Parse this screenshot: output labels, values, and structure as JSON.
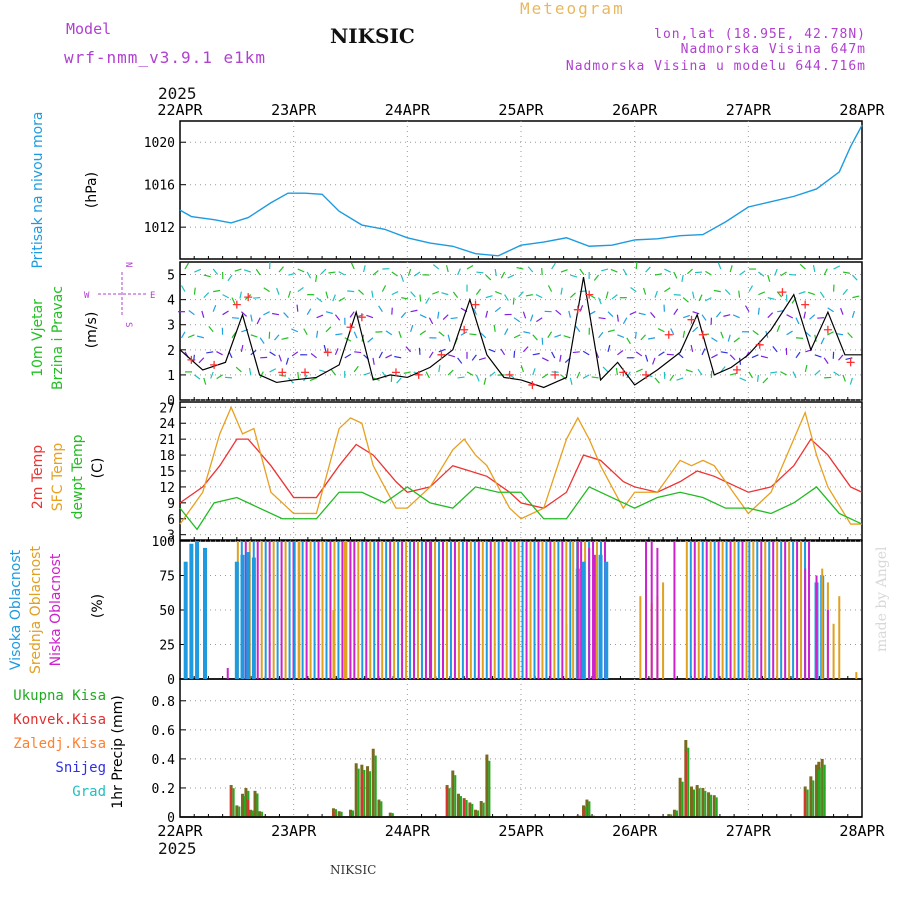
{
  "header": {
    "model_label": "Model",
    "model_name": "wrf-nmm_v3.9.1 e1km",
    "station": "NIKSIC",
    "title": "Meteogram",
    "location": "lon,lat (18.95E, 42.78N)",
    "elevation": "Nadmorska Visina 647m",
    "model_elevation": "Nadmorska Visina u modelu 644.716m",
    "year_top": "2025",
    "year_bottom": "2025",
    "footer_station": "NIKSIC",
    "watermark": "made by Angel"
  },
  "colors": {
    "pressure": "#1e9be0",
    "wind_label": "#22c022",
    "wind_speed": "#000000",
    "gust": "#ff3030",
    "temp2m": "#ee3333",
    "sfc": "#e8a020",
    "dewpt": "#22bb22",
    "cloud_high": "#1e9be0",
    "cloud_mid": "#e0a020",
    "cloud_low": "#cc22cc",
    "precip_total": "#22aa22",
    "precip_conv": "#e03030",
    "precip_frz": "#ff8030",
    "precip_snow": "#3030e0",
    "precip_hail": "#20c0c0",
    "title": "#e8b860",
    "meta": "#b040d0"
  },
  "chart_data": [
    {
      "type": "line",
      "panel": "pressure",
      "ylabel": [
        "Pritisak na nivou mora",
        "(hPa)"
      ],
      "ylim": [
        1009,
        1022
      ],
      "yticks": [
        1012,
        1016,
        1020
      ],
      "x_days": [
        "22APR",
        "23APR",
        "24APR",
        "25APR",
        "26APR",
        "27APR",
        "28APR"
      ],
      "series": [
        {
          "x": [
            0,
            0.1,
            0.3,
            0.45,
            0.6,
            0.8,
            0.95,
            1.1,
            1.25,
            1.4,
            1.6,
            1.8,
            2.0,
            2.2,
            2.4,
            2.6,
            2.8,
            3.0,
            3.2,
            3.4,
            3.6,
            3.8,
            4.0,
            4.2,
            4.4,
            4.6,
            4.8,
            5.0,
            5.2,
            5.4,
            5.6,
            5.8,
            5.9,
            6.0
          ],
          "values": [
            1013.6,
            1013.0,
            1012.7,
            1012.4,
            1012.9,
            1014.3,
            1015.2,
            1015.2,
            1015.1,
            1013.5,
            1012.2,
            1011.8,
            1011.0,
            1010.5,
            1010.2,
            1009.5,
            1009.3,
            1010.3,
            1010.6,
            1011.0,
            1010.2,
            1010.3,
            1010.8,
            1010.9,
            1011.2,
            1011.3,
            1012.5,
            1013.9,
            1014.4,
            1014.9,
            1015.6,
            1017.2,
            1019.6,
            1021.6
          ]
        }
      ]
    },
    {
      "type": "line",
      "panel": "wind",
      "ylabel": [
        "10m Vjetar",
        "Brzina i Pravac",
        "(m/s)"
      ],
      "ylim": [
        0,
        5.5
      ],
      "yticks": [
        0,
        1,
        2,
        3,
        4,
        5
      ],
      "compass": {
        "w": "W",
        "e": "E",
        "n": "N",
        "s": "S"
      },
      "series": [
        {
          "name": "speed",
          "x": [
            0,
            0.2,
            0.4,
            0.55,
            0.7,
            0.85,
            1.0,
            1.2,
            1.4,
            1.55,
            1.7,
            1.85,
            2.0,
            2.2,
            2.4,
            2.55,
            2.7,
            2.85,
            3.0,
            3.2,
            3.4,
            3.55,
            3.7,
            3.85,
            4.0,
            4.2,
            4.4,
            4.55,
            4.7,
            4.85,
            5.0,
            5.2,
            5.4,
            5.55,
            5.7,
            5.85,
            6.0
          ],
          "values": [
            2.0,
            1.2,
            1.5,
            3.4,
            1.0,
            0.7,
            0.8,
            0.9,
            1.4,
            3.5,
            0.8,
            1.0,
            0.9,
            1.3,
            2.0,
            4.0,
            1.8,
            0.9,
            0.8,
            0.5,
            0.9,
            4.9,
            0.8,
            1.5,
            0.6,
            1.2,
            1.9,
            3.4,
            1.0,
            1.3,
            1.8,
            2.8,
            4.2,
            2.0,
            3.5,
            1.8,
            1.8
          ]
        },
        {
          "name": "gust",
          "x": [
            0.1,
            0.3,
            0.5,
            0.6,
            0.9,
            1.1,
            1.3,
            1.5,
            1.6,
            1.9,
            2.1,
            2.3,
            2.5,
            2.6,
            2.9,
            3.1,
            3.3,
            3.5,
            3.6,
            3.9,
            4.1,
            4.3,
            4.5,
            4.6,
            4.9,
            5.1,
            5.3,
            5.5,
            5.7,
            5.9
          ],
          "values": [
            1.6,
            1.4,
            3.8,
            4.1,
            1.1,
            1.1,
            1.9,
            2.9,
            3.3,
            1.1,
            1.0,
            1.8,
            2.8,
            3.8,
            1.0,
            0.6,
            1.0,
            3.6,
            4.2,
            1.1,
            1.0,
            2.6,
            3.2,
            2.6,
            1.2,
            2.2,
            4.3,
            3.8,
            2.8,
            1.5
          ]
        }
      ]
    },
    {
      "type": "line",
      "panel": "temperature",
      "ylabel": [
        "2m Temp",
        "SFC Temp",
        "dewpt Temp",
        "(C)"
      ],
      "ylim": [
        2,
        28
      ],
      "yticks": [
        3,
        6,
        9,
        12,
        15,
        18,
        21,
        24,
        27
      ],
      "series": [
        {
          "name": "2m Temp",
          "x": [
            0,
            0.2,
            0.35,
            0.5,
            0.6,
            0.8,
            1.0,
            1.2,
            1.4,
            1.55,
            1.7,
            1.9,
            2.0,
            2.2,
            2.4,
            2.55,
            2.7,
            2.9,
            3.0,
            3.2,
            3.4,
            3.55,
            3.7,
            3.9,
            4.0,
            4.2,
            4.4,
            4.55,
            4.7,
            4.9,
            5.0,
            5.2,
            5.4,
            5.55,
            5.7,
            5.9,
            6.0
          ],
          "values": [
            9,
            12,
            16,
            21,
            21,
            16,
            10,
            10,
            16,
            20,
            18,
            13,
            11,
            12,
            16,
            15,
            14,
            11,
            9,
            8,
            11,
            18,
            17,
            13,
            12,
            11,
            13,
            15,
            14,
            12,
            11,
            12,
            16,
            21,
            18,
            12,
            11
          ]
        },
        {
          "name": "SFC Temp",
          "x": [
            0,
            0.2,
            0.35,
            0.45,
            0.55,
            0.65,
            0.8,
            1.0,
            1.2,
            1.4,
            1.5,
            1.6,
            1.7,
            1.9,
            2.0,
            2.2,
            2.4,
            2.5,
            2.6,
            2.7,
            2.9,
            3.0,
            3.2,
            3.4,
            3.5,
            3.6,
            3.7,
            3.9,
            4.0,
            4.2,
            4.4,
            4.5,
            4.6,
            4.7,
            4.9,
            5.0,
            5.2,
            5.4,
            5.5,
            5.6,
            5.7,
            5.9,
            6.0
          ],
          "values": [
            5,
            11,
            22,
            27,
            22,
            23,
            11,
            7,
            7,
            23,
            25,
            24,
            16,
            8,
            8,
            12,
            19,
            21,
            18,
            16,
            8,
            6,
            8,
            21,
            25,
            21,
            16,
            8,
            11,
            11,
            17,
            16,
            17,
            16,
            10,
            7,
            11,
            21,
            26,
            18,
            12,
            5,
            5
          ]
        },
        {
          "name": "dewpt Temp",
          "x": [
            0,
            0.15,
            0.3,
            0.5,
            0.7,
            0.9,
            1.0,
            1.2,
            1.4,
            1.6,
            1.8,
            2.0,
            2.2,
            2.4,
            2.6,
            2.8,
            3.0,
            3.2,
            3.4,
            3.6,
            3.8,
            4.0,
            4.2,
            4.4,
            4.6,
            4.8,
            5.0,
            5.2,
            5.4,
            5.6,
            5.8,
            6.0
          ],
          "values": [
            8,
            4,
            9,
            10,
            8,
            6,
            6,
            6,
            11,
            11,
            9,
            12,
            9,
            8,
            12,
            11,
            11,
            6,
            6,
            12,
            10,
            8,
            10,
            11,
            10,
            8,
            8,
            7,
            9,
            12,
            7,
            5
          ]
        }
      ]
    },
    {
      "type": "bar",
      "panel": "clouds",
      "ylabel": [
        "Visoka Oblacnost",
        "Srednja Oblacnost",
        "Niska Oblacnost",
        "(%)"
      ],
      "ylim": [
        0,
        100
      ],
      "yticks": [
        0,
        25,
        50,
        75,
        100
      ],
      "series": [
        {
          "name": "Visoka Oblacnost",
          "x": [
            0.05,
            0.1,
            0.15,
            0.22,
            0.5,
            0.55,
            0.6,
            0.65,
            3.5,
            3.55,
            3.7,
            3.75,
            5.6,
            5.65
          ],
          "values": [
            85,
            98,
            100,
            95,
            85,
            90,
            92,
            88,
            80,
            85,
            90,
            85,
            70,
            75
          ]
        },
        {
          "name": "Srednja Oblacnost",
          "x": [
            1.05,
            1.35,
            1.45,
            3.4,
            3.5,
            4.05,
            4.1,
            4.15,
            4.2,
            4.25,
            5.6,
            5.65,
            5.7,
            5.75,
            5.8,
            5.95
          ],
          "values": [
            100,
            50,
            100,
            40,
            100,
            60,
            65,
            55,
            60,
            70,
            75,
            80,
            70,
            40,
            60,
            5
          ]
        },
        {
          "name": "Niska Oblacnost",
          "x": [
            0.42,
            1.5,
            2.2,
            3.5,
            3.6,
            3.65,
            4.1,
            4.15,
            4.2,
            4.35,
            5.5,
            5.6,
            5.7
          ],
          "values": [
            8,
            100,
            100,
            100,
            95,
            90,
            100,
            100,
            95,
            100,
            80,
            75,
            50
          ]
        }
      ],
      "dense_ranges": [
        [
          0.5,
          1.0,
          100
        ],
        [
          1.0,
          2.2,
          100
        ],
        [
          2.2,
          3.45,
          100
        ],
        [
          3.45,
          3.75,
          100
        ],
        [
          4.45,
          5.0,
          100
        ],
        [
          5.0,
          5.55,
          100
        ]
      ]
    },
    {
      "type": "bar",
      "panel": "precip",
      "ylabel": [
        "1hr Precip (mm)"
      ],
      "legend": [
        "Ukupna Kisa",
        "Konvek.Kisa",
        "Zaledj.Kisa",
        "Snijeg",
        "Grad"
      ],
      "ylim": [
        0,
        0.95
      ],
      "yticks": [
        0,
        0.2,
        0.4,
        0.6,
        0.8
      ],
      "series": [
        {
          "name": "Ukupna Kisa",
          "x": [
            0.45,
            0.5,
            0.55,
            0.58,
            0.62,
            0.66,
            0.7,
            1.35,
            1.4,
            1.5,
            1.55,
            1.6,
            1.65,
            1.7,
            1.75,
            1.85,
            2.35,
            2.4,
            2.45,
            2.5,
            2.55,
            2.6,
            2.65,
            2.7,
            3.5,
            3.55,
            3.58,
            3.62,
            4.3,
            4.35,
            4.4,
            4.45,
            4.5,
            4.55,
            4.6,
            4.65,
            4.7,
            5.5,
            5.55,
            5.6,
            5.62,
            5.65
          ],
          "values": [
            0.22,
            0.08,
            0.16,
            0.2,
            0.05,
            0.18,
            0.04,
            0.06,
            0.04,
            0.05,
            0.37,
            0.36,
            0.35,
            0.47,
            0.12,
            0.03,
            0.22,
            0.32,
            0.16,
            0.13,
            0.1,
            0.05,
            0.11,
            0.43,
            0.01,
            0.08,
            0.12,
            0.01,
            0.02,
            0.05,
            0.27,
            0.53,
            0.21,
            0.22,
            0.2,
            0.17,
            0.15,
            0.21,
            0.28,
            0.36,
            0.38,
            0.4
          ]
        },
        {
          "name": "Konvek.Kisa",
          "x": [
            0.45,
            0.6,
            1.35,
            1.6,
            2.35,
            2.5,
            3.55,
            4.45,
            5.5
          ],
          "values": [
            0.2,
            0.12,
            0.04,
            0.3,
            0.2,
            0.12,
            0.05,
            0.45,
            0.18
          ]
        }
      ]
    }
  ]
}
